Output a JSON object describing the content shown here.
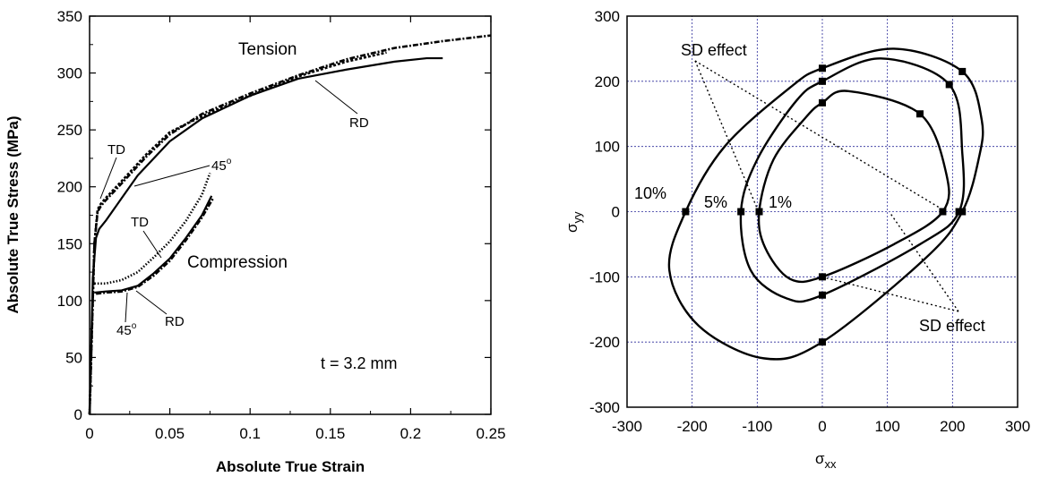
{
  "chart_data": [
    {
      "type": "line",
      "title": "",
      "xlabel": "Absolute True  Strain",
      "ylabel": "Absolute True  Stress (MPa)",
      "xlim": [
        0,
        0.25
      ],
      "ylim": [
        0,
        350
      ],
      "xticks": [
        "0",
        "0.05",
        "0.1",
        "0.15",
        "0.2",
        "0.25"
      ],
      "yticks": [
        "0",
        "50",
        "100",
        "150",
        "200",
        "250",
        "300",
        "350"
      ],
      "grid": false,
      "series": [
        {
          "name": "RD",
          "style": "solid",
          "x": [
            0,
            0.002,
            0.004,
            0.006,
            0.01,
            0.02,
            0.03,
            0.05,
            0.07,
            0.1,
            0.13,
            0.16,
            0.19,
            0.21,
            0.22
          ],
          "y": [
            0,
            120,
            155,
            163,
            170,
            190,
            210,
            240,
            260,
            280,
            295,
            303,
            310,
            313,
            313
          ]
        },
        {
          "name": "TD",
          "style": "dashed",
          "x": [
            0,
            0.003,
            0.005,
            0.007,
            0.01,
            0.02,
            0.035,
            0.05,
            0.07,
            0.1,
            0.13,
            0.16,
            0.185
          ],
          "y": [
            0,
            150,
            180,
            185,
            190,
            205,
            228,
            248,
            262,
            280,
            297,
            310,
            318
          ]
        },
        {
          "name": "45°",
          "style": "dashdot",
          "x": [
            0,
            0.003,
            0.005,
            0.007,
            0.01,
            0.02,
            0.035,
            0.05,
            0.07,
            0.1,
            0.13,
            0.16,
            0.19,
            0.22,
            0.25
          ],
          "y": [
            0,
            150,
            178,
            183,
            188,
            203,
            226,
            246,
            264,
            282,
            298,
            312,
            322,
            328,
            333
          ]
        },
        {
          "name": "TD",
          "style": "dotted",
          "x": [
            0.003,
            0.01,
            0.02,
            0.03,
            0.04,
            0.05,
            0.06,
            0.07,
            0.075
          ],
          "y": [
            115,
            115,
            118,
            125,
            138,
            152,
            170,
            193,
            212
          ]
        },
        {
          "name": "RD",
          "style": "solid",
          "x": [
            0.003,
            0.01,
            0.02,
            0.03,
            0.04,
            0.05,
            0.06,
            0.07,
            0.076
          ],
          "y": [
            107,
            108,
            109,
            113,
            124,
            137,
            155,
            175,
            192
          ]
        },
        {
          "name": "45°",
          "style": "dashdot",
          "x": [
            0.004,
            0.01,
            0.02,
            0.03,
            0.04,
            0.05,
            0.06,
            0.07,
            0.077
          ],
          "y": [
            106,
            107,
            108,
            112,
            122,
            135,
            153,
            173,
            190
          ]
        }
      ],
      "annotations": {
        "tension": "Tension",
        "compression": "Compression",
        "thickness": "t = 3.2 mm",
        "td_tension": "TD",
        "deg45_tension": "45",
        "rd_tension": "RD",
        "td_compression": "TD",
        "deg45_compression": "45",
        "rd_compression": "RD",
        "degree_symbol": "o"
      }
    },
    {
      "type": "line",
      "title": "",
      "xlabel": "σ",
      "xlabel_sub": "xx",
      "ylabel": "σ",
      "ylabel_sub": "yy",
      "xlim": [
        -300,
        300
      ],
      "ylim": [
        -300,
        300
      ],
      "xticks": [
        "-300",
        "-200",
        "-100",
        "0",
        "100",
        "200",
        "300"
      ],
      "yticks": [
        "-300",
        "-200",
        "-100",
        "0",
        "100",
        "200",
        "300"
      ],
      "grid": true,
      "series": [
        {
          "name": "10%",
          "closed": true,
          "points": [
            [
              -210,
              0
            ],
            [
              -150,
              100
            ],
            [
              -50,
              190
            ],
            [
              0,
              220
            ],
            [
              110,
              250
            ],
            [
              215,
              215
            ],
            [
              245,
              140
            ],
            [
              240,
              80
            ],
            [
              215,
              0
            ],
            [
              160,
              -70
            ],
            [
              0,
              -200
            ],
            [
              -90,
              -225
            ],
            [
              -190,
              -175
            ],
            [
              -235,
              -90
            ]
          ],
          "markers": [
            [
              -210,
              0
            ],
            [
              0,
              220
            ],
            [
              215,
              215
            ],
            [
              215,
              0
            ],
            [
              0,
              -200
            ]
          ]
        },
        {
          "name": "5%",
          "closed": true,
          "points": [
            [
              -125,
              0
            ],
            [
              -100,
              80
            ],
            [
              -40,
              170
            ],
            [
              0,
              200
            ],
            [
              90,
              235
            ],
            [
              195,
              195
            ],
            [
              215,
              90
            ],
            [
              210,
              0
            ],
            [
              150,
              -50
            ],
            [
              0,
              -128
            ],
            [
              -55,
              -133
            ],
            [
              -110,
              -90
            ]
          ],
          "markers": [
            [
              -125,
              0
            ],
            [
              0,
              200
            ],
            [
              195,
              195
            ],
            [
              210,
              0
            ],
            [
              0,
              -128
            ]
          ]
        },
        {
          "name": "1%",
          "closed": true,
          "points": [
            [
              -97,
              0
            ],
            [
              -75,
              80
            ],
            [
              -25,
              145
            ],
            [
              0,
              167
            ],
            [
              40,
              185
            ],
            [
              150,
              150
            ],
            [
              190,
              60
            ],
            [
              185,
              0
            ],
            [
              110,
              -50
            ],
            [
              0,
              -100
            ],
            [
              -50,
              -103
            ],
            [
              -88,
              -55
            ]
          ],
          "markers": [
            [
              -97,
              0
            ],
            [
              0,
              167
            ],
            [
              150,
              150
            ],
            [
              185,
              0
            ],
            [
              0,
              -100
            ]
          ]
        }
      ],
      "annotations": {
        "label_10": "10%",
        "label_5": "5%",
        "label_1": "1%",
        "sd_effect_top": "SD effect",
        "sd_effect_bottom": "SD effect"
      }
    }
  ]
}
